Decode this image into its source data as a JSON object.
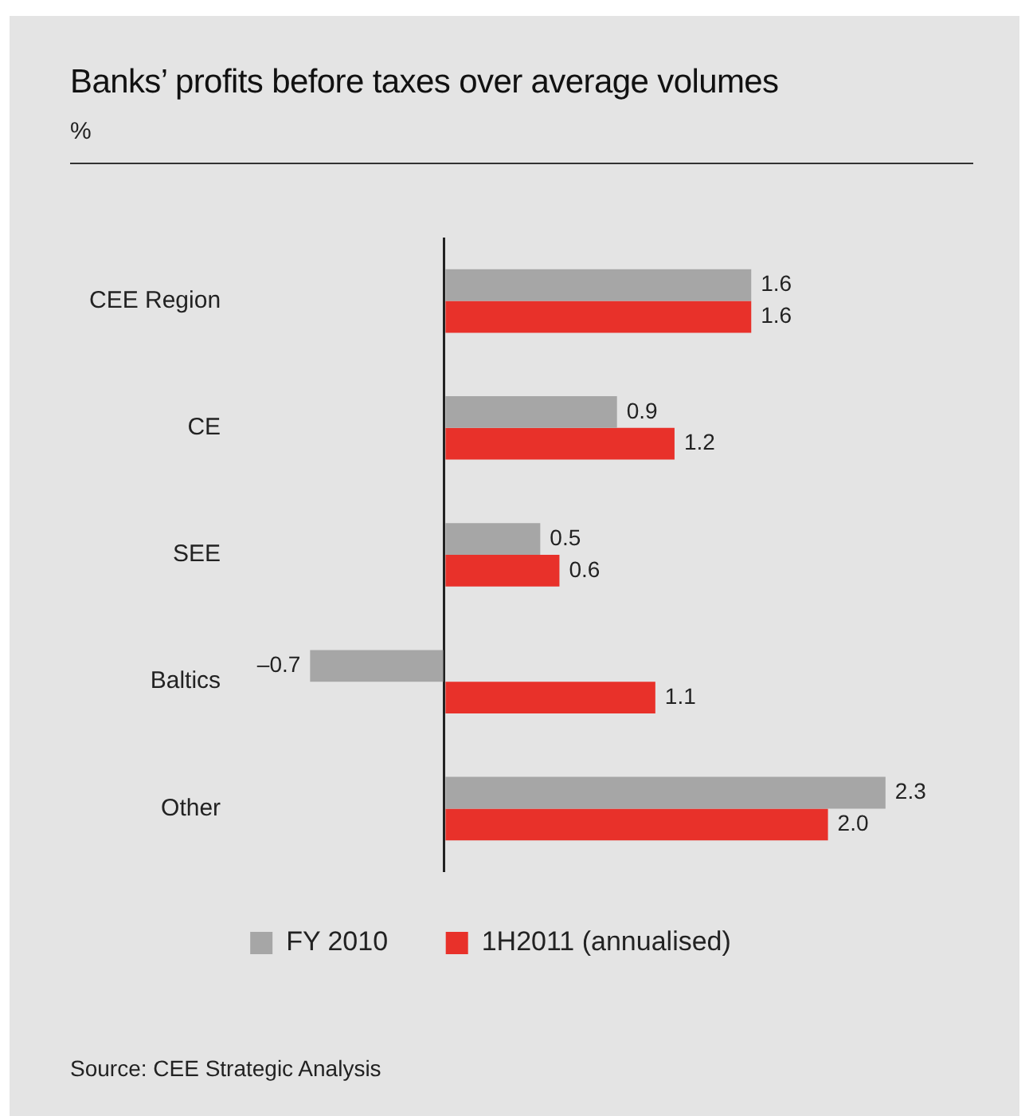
{
  "chart_data": {
    "type": "bar",
    "orientation": "horizontal",
    "title": "Banks’ profits before taxes over average volumes",
    "subtitle": "%",
    "categories": [
      "CEE Region",
      "CE",
      "SEE",
      "Baltics",
      "Other"
    ],
    "series": [
      {
        "name": "FY 2010",
        "color": "#a6a6a6",
        "values": [
          1.6,
          0.9,
          0.5,
          -0.7,
          2.3
        ],
        "value_labels": [
          "1.6",
          "0.9",
          "0.5",
          "–0.7",
          "2.3"
        ]
      },
      {
        "name": "1H2011 (annualised)",
        "color": "#e8312a",
        "values": [
          1.6,
          1.2,
          0.6,
          1.1,
          2.0
        ],
        "value_labels": [
          "1.6",
          "1.2",
          "0.6",
          "1.1",
          "2.0"
        ]
      }
    ],
    "legend": "bottom",
    "grid": false,
    "annotations": [
      "Source: CEE Strategic Analysis"
    ]
  }
}
